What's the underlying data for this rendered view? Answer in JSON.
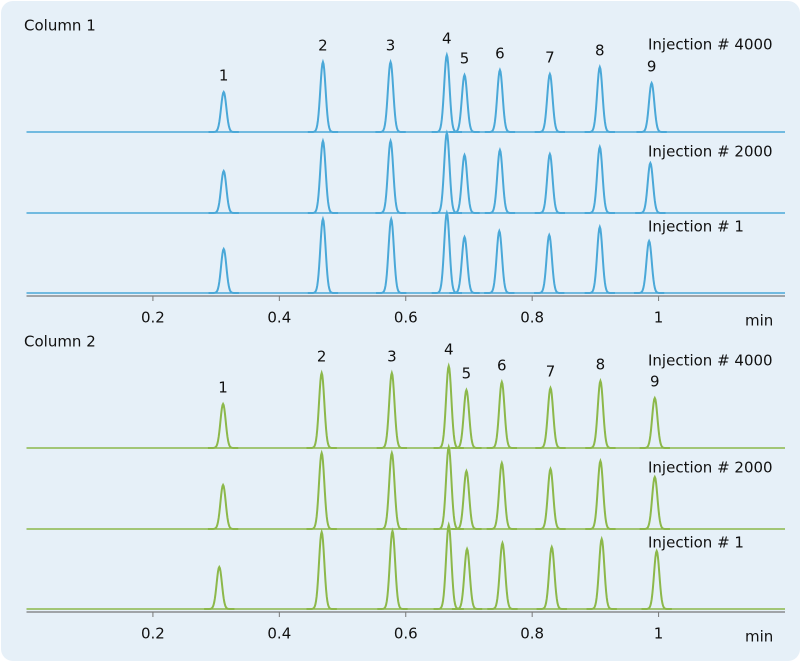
{
  "chart_data": [
    {
      "type": "chromatogram",
      "title": "Column 1",
      "xlabel": "min",
      "xlim": [
        0,
        1.2
      ],
      "xticks": [
        0.2,
        0.4,
        0.6,
        0.8,
        1
      ],
      "peak_labels": [
        "1",
        "2",
        "3",
        "4",
        "5",
        "6",
        "7",
        "8",
        "9"
      ],
      "series": [
        {
          "name": "Injection # 4000",
          "color": "#4aa8d8",
          "x": [
            0.312,
            0.469,
            0.576,
            0.665,
            0.693,
            0.749,
            0.828,
            0.907,
            0.989
          ],
          "values": [
            40,
            70,
            70,
            77,
            57,
            62,
            58,
            65,
            49
          ]
        },
        {
          "name": "Injection # 2000",
          "color": "#4aa8d8",
          "x": [
            0.312,
            0.469,
            0.576,
            0.665,
            0.693,
            0.749,
            0.828,
            0.907,
            0.987
          ],
          "values": [
            42,
            72,
            72,
            80,
            58,
            63,
            59,
            66,
            50
          ]
        },
        {
          "name": "Injection # 1",
          "color": "#4aa8d8",
          "x": [
            0.312,
            0.469,
            0.577,
            0.665,
            0.693,
            0.748,
            0.827,
            0.907,
            0.985
          ],
          "values": [
            44,
            74,
            74,
            80,
            56,
            62,
            58,
            66,
            52
          ]
        }
      ]
    },
    {
      "type": "chromatogram",
      "title": "Column 2",
      "xlabel": "min",
      "xlim": [
        0,
        1.2
      ],
      "xticks": [
        0.2,
        0.4,
        0.6,
        0.8,
        1
      ],
      "peak_labels": [
        "1",
        "2",
        "3",
        "4",
        "5",
        "6",
        "7",
        "8",
        "9"
      ],
      "series": [
        {
          "name": "Injection # 4000",
          "color": "#8cb84a",
          "x": [
            0.311,
            0.467,
            0.578,
            0.668,
            0.696,
            0.752,
            0.829,
            0.908,
            0.994
          ],
          "values": [
            44,
            75,
            75,
            82,
            58,
            66,
            60,
            67,
            50
          ]
        },
        {
          "name": "Injection # 2000",
          "color": "#8cb84a",
          "x": [
            0.311,
            0.467,
            0.578,
            0.668,
            0.696,
            0.752,
            0.829,
            0.908,
            0.994
          ],
          "values": [
            44,
            76,
            76,
            82,
            58,
            66,
            60,
            68,
            52
          ]
        },
        {
          "name": "Injection # 1",
          "color": "#8cb84a",
          "x": [
            0.305,
            0.467,
            0.579,
            0.668,
            0.697,
            0.753,
            0.831,
            0.91,
            0.997
          ],
          "values": [
            42,
            77,
            78,
            84,
            60,
            66,
            62,
            70,
            58
          ]
        }
      ]
    }
  ]
}
